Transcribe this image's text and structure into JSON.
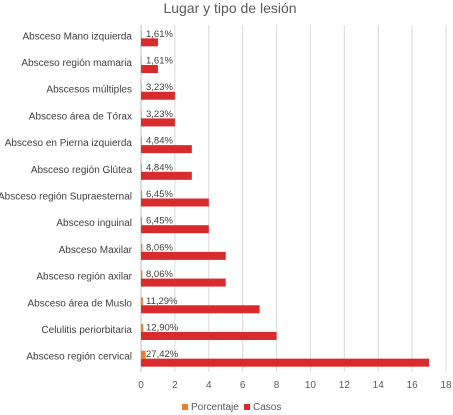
{
  "chart_data": {
    "type": "bar",
    "orientation": "horizontal",
    "title": "Lugar y tipo de lesión",
    "categories": [
      "Absceso Mano izquierda",
      "Absceso región mamaria",
      "Abscesos múltiples",
      "Absceso área de Tórax",
      "Absceso en Pierna izquierda",
      "Absceso región Glútea",
      "Absceso región Supraesternal",
      "Absceso inguinal",
      "Absceso Maxilar",
      "Absceso región axilar",
      "Absceso área de Muslo",
      "Celulitis periorbitaria",
      "Absceso región cervical"
    ],
    "series": [
      {
        "name": "Porcentaje",
        "color": "#ED7D31",
        "values": [
          0.0161,
          0.0161,
          0.0323,
          0.0323,
          0.0484,
          0.0484,
          0.0645,
          0.0645,
          0.0806,
          0.0806,
          0.1129,
          0.129,
          0.2742
        ],
        "labels": [
          "1,61%",
          "1,61%",
          "3,23%",
          "3,23%",
          "4,84%",
          "4,84%",
          "6,45%",
          "6,45%",
          "8,06%",
          "8,06%",
          "11,29%",
          "12,90%",
          "27,42%"
        ]
      },
      {
        "name": "Casos",
        "color": "#D92B2B",
        "values": [
          1,
          1,
          2,
          2,
          3,
          3,
          4,
          4,
          5,
          5,
          7,
          8,
          17
        ]
      }
    ],
    "xlim": [
      0,
      18
    ],
    "xticks": [
      "0",
      "2",
      "4",
      "6",
      "8",
      "10",
      "12",
      "14",
      "16",
      "18"
    ],
    "grid": true,
    "legend": "bottom"
  }
}
